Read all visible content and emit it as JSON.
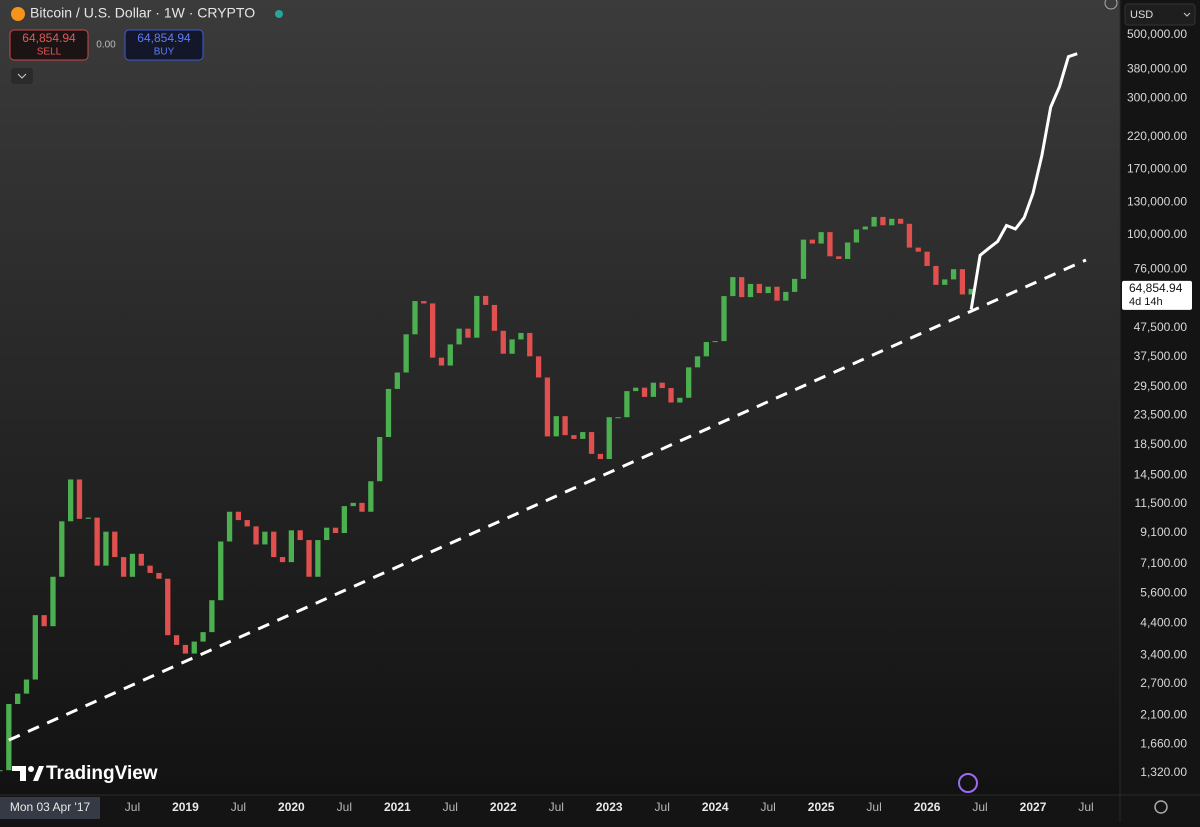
{
  "header": {
    "symbol": "Bitcoin / U.S. Dollar · 1W · CRYPTO",
    "sell_price": "64,854.94",
    "sell_label": "SELL",
    "spread": "0.00",
    "buy_price": "64,854.94",
    "buy_label": "BUY",
    "currency": "USD",
    "brand": "TradingView",
    "cursor_date": "Mon 03 Apr '17"
  },
  "chart_data": {
    "type": "candlestick",
    "log": true,
    "grid": false,
    "up_color": "#4caf50",
    "down_color": "#e0504f",
    "xlim": [
      "2017-04",
      "2027-10"
    ],
    "ylim": [
      1106,
      662600
    ],
    "xticks": [
      {
        "value": "2018-07",
        "label": "Jul"
      },
      {
        "value": "2019-01",
        "label": "2019"
      },
      {
        "value": "2019-07",
        "label": "Jul"
      },
      {
        "value": "2020-01",
        "label": "2020"
      },
      {
        "value": "2020-07",
        "label": "Jul"
      },
      {
        "value": "2021-01",
        "label": "2021"
      },
      {
        "value": "2021-07",
        "label": "Jul"
      },
      {
        "value": "2022-01",
        "label": "2022"
      },
      {
        "value": "2022-07",
        "label": "Jul"
      },
      {
        "value": "2023-01",
        "label": "2023"
      },
      {
        "value": "2023-07",
        "label": "Jul"
      },
      {
        "value": "2024-01",
        "label": "2024"
      },
      {
        "value": "2024-07",
        "label": "Jul"
      },
      {
        "value": "2025-01",
        "label": "2025"
      },
      {
        "value": "2025-07",
        "label": "Jul"
      },
      {
        "value": "2026-01",
        "label": "2026"
      },
      {
        "value": "2026-07",
        "label": "Jul"
      },
      {
        "value": "2027-01",
        "label": "2027"
      },
      {
        "value": "2027-07",
        "label": "Jul"
      }
    ],
    "yticks": [
      {
        "value": 500000,
        "label": "500,000.00"
      },
      {
        "value": 380000,
        "label": "380,000.00"
      },
      {
        "value": 300000,
        "label": "300,000.00"
      },
      {
        "value": 220000,
        "label": "220,000.00"
      },
      {
        "value": 170000,
        "label": "170,000.00"
      },
      {
        "value": 130000,
        "label": "130,000.00"
      },
      {
        "value": 100000,
        "label": "100,000.00"
      },
      {
        "value": 76000,
        "label": "76,000.00"
      },
      {
        "value": 47500,
        "label": "47,500.00"
      },
      {
        "value": 37500,
        "label": "37,500.00"
      },
      {
        "value": 29500,
        "label": "29,500.00"
      },
      {
        "value": 23500,
        "label": "23,500.00"
      },
      {
        "value": 18500,
        "label": "18,500.00"
      },
      {
        "value": 14500,
        "label": "14,500.00"
      },
      {
        "value": 11500,
        "label": "11,500.00"
      },
      {
        "value": 9100,
        "label": "9,100.00"
      },
      {
        "value": 7100,
        "label": "7,100.00"
      },
      {
        "value": 5600,
        "label": "5,600.00"
      },
      {
        "value": 4400,
        "label": "4,400.00"
      },
      {
        "value": 3400,
        "label": "3,400.00"
      },
      {
        "value": 2700,
        "label": "2,700.00"
      },
      {
        "value": 2100,
        "label": "2,100.00"
      },
      {
        "value": 1660,
        "label": "1,660.00"
      },
      {
        "value": 1320,
        "label": "1,320.00"
      }
    ],
    "x": [
      "2017-04",
      "2017-05",
      "2017-06",
      "2017-07",
      "2017-08",
      "2017-09",
      "2017-10",
      "2017-11",
      "2017-12",
      "2018-01",
      "2018-02",
      "2018-03",
      "2018-04",
      "2018-05",
      "2018-06",
      "2018-07",
      "2018-08",
      "2018-09",
      "2018-10",
      "2018-11",
      "2018-12",
      "2019-01",
      "2019-02",
      "2019-03",
      "2019-04",
      "2019-05",
      "2019-06",
      "2019-07",
      "2019-08",
      "2019-09",
      "2019-10",
      "2019-11",
      "2019-12",
      "2020-01",
      "2020-02",
      "2020-03",
      "2020-04",
      "2020-05",
      "2020-06",
      "2020-07",
      "2020-08",
      "2020-09",
      "2020-10",
      "2020-11",
      "2020-12",
      "2021-01",
      "2021-02",
      "2021-03",
      "2021-04",
      "2021-05",
      "2021-06",
      "2021-07",
      "2021-08",
      "2021-09",
      "2021-10",
      "2021-11",
      "2021-12",
      "2022-01",
      "2022-02",
      "2022-03",
      "2022-04",
      "2022-05",
      "2022-06",
      "2022-07",
      "2022-08",
      "2022-09",
      "2022-10",
      "2022-11",
      "2022-12",
      "2023-01",
      "2023-02",
      "2023-03",
      "2023-04",
      "2023-05",
      "2023-06",
      "2023-07",
      "2023-08",
      "2023-09",
      "2023-10",
      "2023-11",
      "2023-12",
      "2024-01",
      "2024-02",
      "2024-03",
      "2024-04",
      "2024-05",
      "2024-06",
      "2024-07",
      "2024-08",
      "2024-09",
      "2024-10",
      "2024-11",
      "2024-12",
      "2025-01",
      "2025-02",
      "2025-03",
      "2025-04",
      "2025-05",
      "2025-06",
      "2025-07",
      "2025-08",
      "2025-09",
      "2025-10",
      "2025-11",
      "2025-12",
      "2026-01",
      "2026-02",
      "2026-03",
      "2026-04",
      "2026-05",
      "2026-06"
    ],
    "values": [
      1350,
      2300,
      2500,
      2800,
      4700,
      4300,
      6400,
      10000,
      14000,
      10200,
      10300,
      7000,
      9200,
      7500,
      6400,
      7700,
      7000,
      6600,
      6300,
      4000,
      3700,
      3450,
      3800,
      4100,
      5300,
      8500,
      10800,
      10100,
      9600,
      8300,
      9200,
      7500,
      7200,
      9300,
      8600,
      6400,
      8600,
      9500,
      9100,
      11300,
      11600,
      10800,
      13800,
      19700,
      29000,
      33100,
      45000,
      58800,
      57700,
      37300,
      35000,
      41500,
      47100,
      43800,
      61300,
      57000,
      46300,
      38500,
      43200,
      45500,
      37700,
      31800,
      19800,
      23300,
      20000,
      19400,
      20500,
      17200,
      16500,
      23100,
      23100,
      28500,
      29300,
      27200,
      30500,
      29200,
      26000,
      27000,
      34500,
      37700,
      42300,
      42600,
      61200,
      71300,
      60700,
      67500,
      62700,
      66000,
      59000,
      63300,
      70300,
      96400,
      93400,
      102400,
      84300,
      82500,
      94200,
      104600,
      107100,
      115700,
      108200,
      114000,
      109500,
      90400,
      87500,
      78000,
      67000,
      70000,
      76000,
      62000,
      64854.94
    ],
    "projection": {
      "color": "#ffffff",
      "x": [
        "2026-06",
        "2026-07",
        "2026-08",
        "2026-09",
        "2026-10",
        "2026-11",
        "2026-12",
        "2027-01",
        "2027-02",
        "2027-03",
        "2027-04",
        "2027-05",
        "2027-06"
      ],
      "values": [
        55000,
        85000,
        90000,
        95000,
        108000,
        105000,
        115000,
        140000,
        190000,
        280000,
        330000,
        420000,
        430000
      ]
    },
    "trendline": {
      "color": "#ffffff",
      "x": [
        "2017-05",
        "2027-07"
      ],
      "values": [
        1720,
        81800
      ]
    },
    "last_price": {
      "value": 64854.94,
      "label": "64,854.94"
    },
    "countdown": "4d 14h"
  }
}
